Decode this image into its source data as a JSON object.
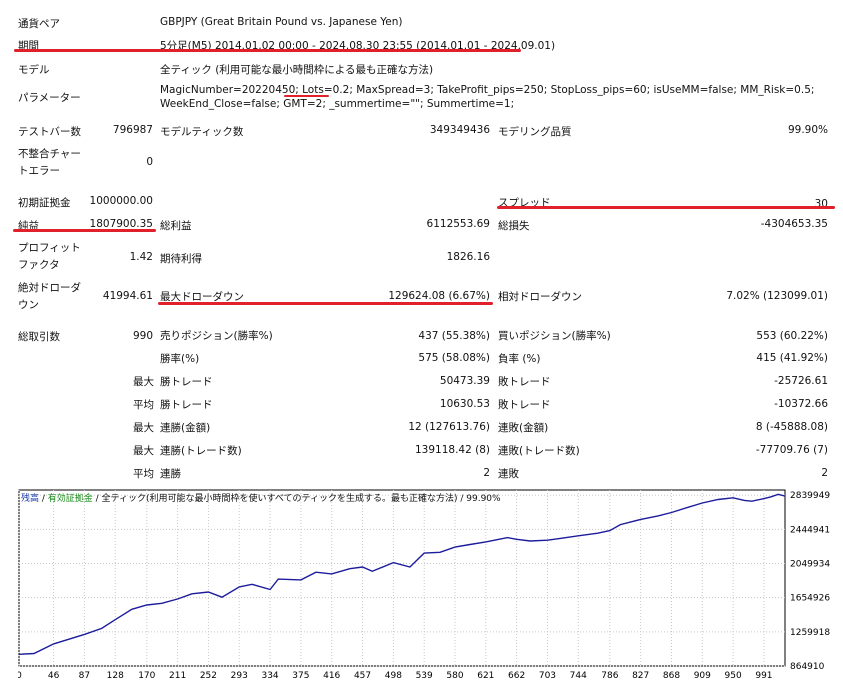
{
  "header": {
    "pair_label": "通貨ペア",
    "pair_value": "GBPJPY (Great Britain Pound vs. Japanese Yen)",
    "period_label": "期間",
    "period_value": "5分足(M5) 2014.01.02 00:00 - 2024.08.30 23:55 (2014.01.01 - 2024.09.01)",
    "model_label": "モデル",
    "model_value": "全ティック (利用可能な最小時間枠による最も正確な方法)",
    "params_label": "パラメーター",
    "params_line1": "MagicNumber=20220450; Lots=0.2; MaxSpread=3; TakeProfit_pips=250; StopLoss_pips=60; isUseMM=false; MM_Risk=0.5;",
    "params_line2": "WeekEnd_Close=false; GMT=2; _summertime=\"\"; Summertime=1;"
  },
  "stats": {
    "bars_label": "テストバー数",
    "bars_value": "796987",
    "ticks_label": "モデルティック数",
    "ticks_value": "349349436",
    "quality_label": "モデリング品質",
    "quality_value": "99.90%",
    "mismatch_label_1": "不整合チャー",
    "mismatch_label_2": "トエラー",
    "mismatch_value": "0",
    "deposit_label": "初期証拠金",
    "deposit_value": "1000000.00",
    "spread_label": "スプレッド",
    "spread_value": "30",
    "net_label": "純益",
    "net_value": "1807900.35",
    "gross_profit_label": "総利益",
    "gross_profit_value": "6112553.69",
    "gross_loss_label": "総損失",
    "gross_loss_value": "-4304653.35",
    "pf_label_1": "プロフィット",
    "pf_label_2": "ファクタ",
    "pf_value": "1.42",
    "expected_label": "期待利得",
    "expected_value": "1826.16",
    "abs_dd_label_1": "絶対ドローダ",
    "abs_dd_label_2": "ウン",
    "abs_dd_value": "41994.61",
    "max_dd_label": "最大ドローダウン",
    "max_dd_value": "129624.08 (6.67%)",
    "rel_dd_label": "相対ドローダウン",
    "rel_dd_value": "7.02% (123099.01)",
    "trades_label": "総取引数",
    "trades_value": "990",
    "short_label": "売りポジション(勝率%)",
    "short_value": "437 (55.38%)",
    "long_label": "買いポジション(勝率%)",
    "long_value": "553 (60.22%)",
    "win_pct_label": "勝率(%)",
    "win_pct_value": "575 (58.08%)",
    "loss_pct_label": "負率 (%)",
    "loss_pct_value": "415 (41.92%)",
    "max_word": "最大",
    "avg_word": "平均",
    "best_win_label": "勝トレード",
    "best_win_value": "50473.39",
    "worst_loss_label": "敗トレード",
    "worst_loss_value": "-25726.61",
    "avg_win_label": "勝トレード",
    "avg_win_value": "10630.53",
    "avg_loss_label": "敗トレード",
    "avg_loss_value": "-10372.66",
    "cons_win_amt_label": "連勝(金額)",
    "cons_win_amt_value": "12 (127613.76)",
    "cons_loss_amt_label": "連敗(金額)",
    "cons_loss_amt_value": "8 (-45888.08)",
    "cons_win_tr_label": "連勝(トレード数)",
    "cons_win_tr_value": "139118.42 (8)",
    "cons_loss_tr_label": "連敗(トレード数)",
    "cons_loss_tr_value": "-77709.76 (7)",
    "avg_cons_win_label": "連勝",
    "avg_cons_win_value": "2",
    "avg_cons_loss_label": "連敗",
    "avg_cons_loss_value": "2"
  },
  "chart_title": {
    "balance": "残高",
    "sep1": " / ",
    "equity": "有効証拠金",
    "rest": " / 全ティック(利用可能な最小時間枠を使いすべてのティックを生成する。最も正確な方法) / 99.90%"
  },
  "colors": {
    "underline": "#e0202a",
    "line": "#1c1c9c",
    "grid": "#c8c8c8"
  },
  "chart_data": {
    "type": "line",
    "x_ticks": [
      0,
      46,
      87,
      128,
      170,
      211,
      252,
      293,
      334,
      375,
      416,
      457,
      498,
      539,
      580,
      621,
      662,
      703,
      744,
      786,
      827,
      868,
      909,
      950,
      991
    ],
    "y_ticks": [
      864910,
      1259918,
      1654926,
      2049934,
      2444941,
      2839949
    ],
    "xlim": [
      0,
      1019
    ],
    "ylim": [
      864910,
      2900000
    ],
    "series": [
      {
        "values": [
          [
            0,
            1000000
          ],
          [
            20,
            1010000
          ],
          [
            46,
            1120000
          ],
          [
            87,
            1230000
          ],
          [
            110,
            1300000
          ],
          [
            128,
            1400000
          ],
          [
            150,
            1520000
          ],
          [
            170,
            1570000
          ],
          [
            190,
            1590000
          ],
          [
            211,
            1640000
          ],
          [
            230,
            1700000
          ],
          [
            252,
            1720000
          ],
          [
            270,
            1660000
          ],
          [
            293,
            1780000
          ],
          [
            310,
            1810000
          ],
          [
            334,
            1750000
          ],
          [
            345,
            1870000
          ],
          [
            375,
            1860000
          ],
          [
            395,
            1950000
          ],
          [
            416,
            1930000
          ],
          [
            440,
            1990000
          ],
          [
            457,
            2010000
          ],
          [
            470,
            1960000
          ],
          [
            498,
            2060000
          ],
          [
            520,
            2010000
          ],
          [
            539,
            2170000
          ],
          [
            560,
            2180000
          ],
          [
            580,
            2240000
          ],
          [
            600,
            2270000
          ],
          [
            621,
            2300000
          ],
          [
            650,
            2350000
          ],
          [
            662,
            2330000
          ],
          [
            680,
            2310000
          ],
          [
            703,
            2320000
          ],
          [
            720,
            2340000
          ],
          [
            744,
            2370000
          ],
          [
            770,
            2400000
          ],
          [
            786,
            2430000
          ],
          [
            800,
            2500000
          ],
          [
            827,
            2560000
          ],
          [
            850,
            2600000
          ],
          [
            868,
            2640000
          ],
          [
            890,
            2700000
          ],
          [
            909,
            2750000
          ],
          [
            930,
            2790000
          ],
          [
            950,
            2810000
          ],
          [
            965,
            2780000
          ],
          [
            975,
            2770000
          ],
          [
            991,
            2800000
          ],
          [
            1000,
            2820000
          ],
          [
            1010,
            2850000
          ],
          [
            1019,
            2830000
          ]
        ]
      }
    ]
  }
}
